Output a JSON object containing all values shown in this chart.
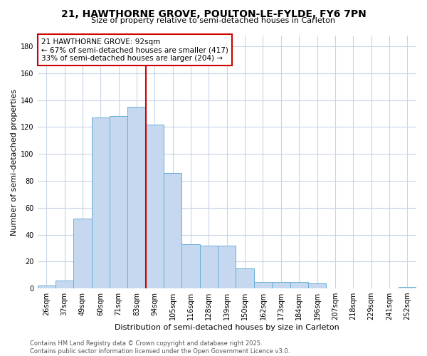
{
  "title": "21, HAWTHORNE GROVE, POULTON-LE-FYLDE, FY6 7PN",
  "subtitle": "Size of property relative to semi-detached houses in Carleton",
  "xlabel": "Distribution of semi-detached houses by size in Carleton",
  "ylabel": "Number of semi-detached properties",
  "bin_labels": [
    "26sqm",
    "37sqm",
    "49sqm",
    "60sqm",
    "71sqm",
    "83sqm",
    "94sqm",
    "105sqm",
    "116sqm",
    "128sqm",
    "139sqm",
    "150sqm",
    "162sqm",
    "173sqm",
    "184sqm",
    "196sqm",
    "207sqm",
    "218sqm",
    "229sqm",
    "241sqm",
    "252sqm"
  ],
  "bar_heights": [
    2,
    6,
    52,
    127,
    128,
    135,
    122,
    86,
    33,
    32,
    32,
    15,
    5,
    5,
    5,
    4,
    0,
    0,
    0,
    0,
    1
  ],
  "bar_color": "#c5d8f0",
  "bar_edge_color": "#6baed6",
  "vline_color": "#cc0000",
  "annotation_title": "21 HAWTHORNE GROVE: 92sqm",
  "annotation_line1": "← 67% of semi-detached houses are smaller (417)",
  "annotation_line2": "33% of semi-detached houses are larger (204) →",
  "annotation_box_color": "#ffffff",
  "annotation_box_edge": "#cc0000",
  "ylim": [
    0,
    188
  ],
  "yticks": [
    0,
    20,
    40,
    60,
    80,
    100,
    120,
    140,
    160,
    180
  ],
  "footer_line1": "Contains HM Land Registry data © Crown copyright and database right 2025.",
  "footer_line2": "Contains public sector information licensed under the Open Government Licence v3.0.",
  "bg_color": "#ffffff",
  "grid_color": "#c8d4e8",
  "title_fontsize": 10,
  "subtitle_fontsize": 8,
  "ylabel_fontsize": 8,
  "xlabel_fontsize": 8,
  "tick_fontsize": 7,
  "annotation_fontsize": 7.5,
  "footer_fontsize": 6
}
